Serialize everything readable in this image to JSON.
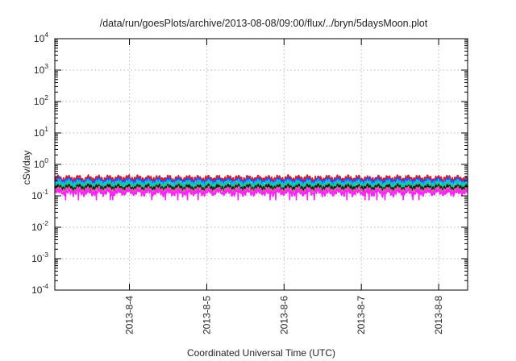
{
  "chart_data": {
    "type": "line",
    "title": "/data/run/goesPlots/archive/2013-08-08/09:00/flux/../bryn/5daysMoon.plot",
    "xlabel": "Coordinated Universal Time (UTC)",
    "ylabel": "cSv/day",
    "yscale": "log",
    "ylim": [
      0.0001,
      10000
    ],
    "y_ticks": [
      {
        "base": "10",
        "exp": "-4",
        "value": 0.0001
      },
      {
        "base": "10",
        "exp": "-3",
        "value": 0.001
      },
      {
        "base": "10",
        "exp": "-2",
        "value": 0.01
      },
      {
        "base": "10",
        "exp": "-1",
        "value": 0.1
      },
      {
        "base": "10",
        "exp": "0",
        "value": 1
      },
      {
        "base": "10",
        "exp": "1",
        "value": 10
      },
      {
        "base": "10",
        "exp": "2",
        "value": 100
      },
      {
        "base": "10",
        "exp": "3",
        "value": 1000
      },
      {
        "base": "10",
        "exp": "4",
        "value": 10000
      }
    ],
    "xlim": [
      "2013-08-03T00:50",
      "2013-08-08T09:00"
    ],
    "x_ticks": [
      "2013-8-4",
      "2013-8-5",
      "2013-8-6",
      "2013-8-7",
      "2013-8-8"
    ],
    "grid": true,
    "legend": "none",
    "series": [
      {
        "color": "#e8141e",
        "level": 0.36,
        "dip_level": 0.25
      },
      {
        "color": "#2a50e8",
        "level": 0.31,
        "dip_level": 0.21
      },
      {
        "color": "#19b9ee",
        "level": 0.26,
        "dip_level": 0.17
      },
      {
        "color": "#18c88a",
        "level": 0.22,
        "dip_level": 0.155
      },
      {
        "color": "#1a1a1a",
        "level": 0.185,
        "dip_level": 0.14
      },
      {
        "color": "#d95fa0",
        "level": 0.155,
        "dip_level": 0.12
      },
      {
        "color": "#ff1fff",
        "level": 0.13,
        "dip_level": 0.075
      }
    ]
  }
}
